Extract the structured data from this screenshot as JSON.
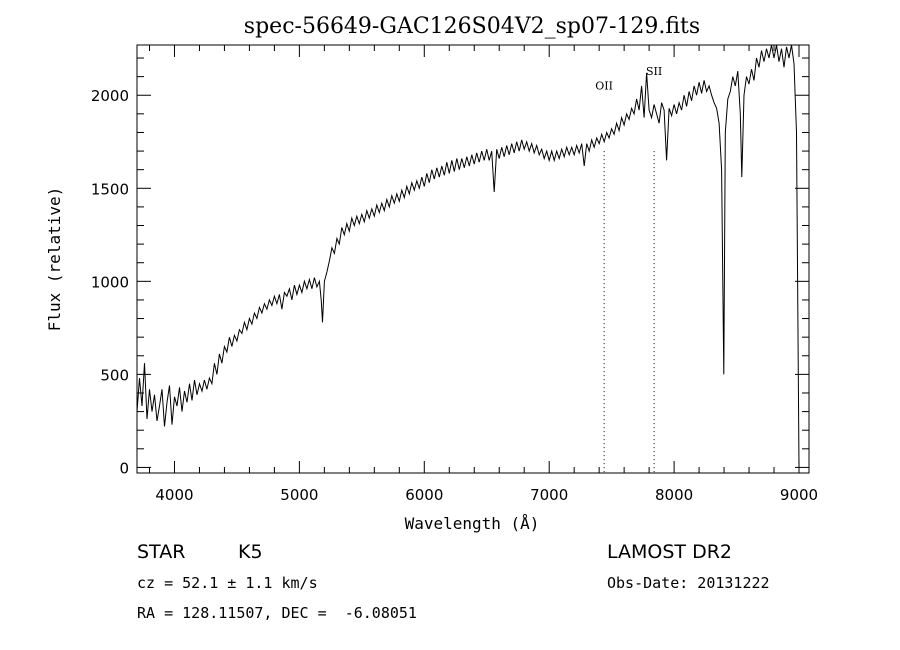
{
  "chart_data": {
    "type": "line",
    "title": "spec-56649-GAC126S04V2_sp07-129.fits",
    "xlabel": "Wavelength (Å)",
    "ylabel": "Flux (relative)",
    "xlim": [
      3700,
      9080
    ],
    "ylim": [
      -30,
      2270
    ],
    "x_ticks": [
      4000,
      5000,
      6000,
      7000,
      8000,
      9000
    ],
    "y_ticks": [
      0,
      500,
      1000,
      1500,
      2000
    ],
    "grid": false,
    "line_color": "#000000",
    "series": [
      {
        "values": [
          [
            3700,
            300
          ],
          [
            3720,
            480
          ],
          [
            3740,
            330
          ],
          [
            3760,
            560
          ],
          [
            3780,
            260
          ],
          [
            3800,
            420
          ],
          [
            3820,
            300
          ],
          [
            3840,
            390
          ],
          [
            3860,
            250
          ],
          [
            3880,
            330
          ],
          [
            3900,
            420
          ],
          [
            3920,
            220
          ],
          [
            3940,
            350
          ],
          [
            3960,
            440
          ],
          [
            3980,
            230
          ],
          [
            4000,
            380
          ],
          [
            4020,
            330
          ],
          [
            4040,
            430
          ],
          [
            4060,
            300
          ],
          [
            4080,
            410
          ],
          [
            4100,
            350
          ],
          [
            4120,
            450
          ],
          [
            4140,
            360
          ],
          [
            4160,
            470
          ],
          [
            4180,
            390
          ],
          [
            4200,
            450
          ],
          [
            4220,
            410
          ],
          [
            4240,
            470
          ],
          [
            4260,
            420
          ],
          [
            4280,
            480
          ],
          [
            4300,
            450
          ],
          [
            4320,
            560
          ],
          [
            4340,
            500
          ],
          [
            4360,
            610
          ],
          [
            4380,
            560
          ],
          [
            4400,
            650
          ],
          [
            4420,
            620
          ],
          [
            4440,
            700
          ],
          [
            4460,
            650
          ],
          [
            4480,
            710
          ],
          [
            4500,
            680
          ],
          [
            4520,
            740
          ],
          [
            4540,
            720
          ],
          [
            4560,
            780
          ],
          [
            4580,
            740
          ],
          [
            4600,
            800
          ],
          [
            4620,
            770
          ],
          [
            4640,
            830
          ],
          [
            4660,
            800
          ],
          [
            4680,
            860
          ],
          [
            4700,
            830
          ],
          [
            4720,
            880
          ],
          [
            4740,
            850
          ],
          [
            4760,
            900
          ],
          [
            4780,
            870
          ],
          [
            4800,
            920
          ],
          [
            4820,
            880
          ],
          [
            4840,
            930
          ],
          [
            4860,
            850
          ],
          [
            4880,
            940
          ],
          [
            4900,
            920
          ],
          [
            4920,
            960
          ],
          [
            4940,
            900
          ],
          [
            4960,
            980
          ],
          [
            4980,
            930
          ],
          [
            5000,
            980
          ],
          [
            5020,
            940
          ],
          [
            5040,
            1000
          ],
          [
            5060,
            960
          ],
          [
            5080,
            1010
          ],
          [
            5100,
            960
          ],
          [
            5120,
            1020
          ],
          [
            5140,
            970
          ],
          [
            5160,
            1000
          ],
          [
            5175,
            900
          ],
          [
            5185,
            780
          ],
          [
            5200,
            1000
          ],
          [
            5220,
            1050
          ],
          [
            5240,
            1110
          ],
          [
            5260,
            1180
          ],
          [
            5280,
            1150
          ],
          [
            5300,
            1230
          ],
          [
            5320,
            1200
          ],
          [
            5340,
            1290
          ],
          [
            5360,
            1250
          ],
          [
            5380,
            1310
          ],
          [
            5400,
            1270
          ],
          [
            5420,
            1340
          ],
          [
            5440,
            1300
          ],
          [
            5460,
            1350
          ],
          [
            5480,
            1310
          ],
          [
            5500,
            1360
          ],
          [
            5520,
            1320
          ],
          [
            5540,
            1380
          ],
          [
            5560,
            1340
          ],
          [
            5580,
            1390
          ],
          [
            5600,
            1350
          ],
          [
            5620,
            1410
          ],
          [
            5640,
            1370
          ],
          [
            5660,
            1420
          ],
          [
            5680,
            1380
          ],
          [
            5700,
            1440
          ],
          [
            5720,
            1400
          ],
          [
            5740,
            1460
          ],
          [
            5760,
            1420
          ],
          [
            5780,
            1470
          ],
          [
            5800,
            1430
          ],
          [
            5820,
            1490
          ],
          [
            5840,
            1450
          ],
          [
            5860,
            1510
          ],
          [
            5880,
            1470
          ],
          [
            5900,
            1530
          ],
          [
            5920,
            1490
          ],
          [
            5940,
            1540
          ],
          [
            5960,
            1500
          ],
          [
            5980,
            1560
          ],
          [
            6000,
            1510
          ],
          [
            6020,
            1580
          ],
          [
            6040,
            1530
          ],
          [
            6060,
            1600
          ],
          [
            6080,
            1550
          ],
          [
            6100,
            1610
          ],
          [
            6120,
            1560
          ],
          [
            6140,
            1620
          ],
          [
            6160,
            1570
          ],
          [
            6180,
            1640
          ],
          [
            6200,
            1580
          ],
          [
            6220,
            1650
          ],
          [
            6240,
            1590
          ],
          [
            6260,
            1660
          ],
          [
            6280,
            1600
          ],
          [
            6300,
            1660
          ],
          [
            6320,
            1610
          ],
          [
            6340,
            1670
          ],
          [
            6360,
            1620
          ],
          [
            6380,
            1680
          ],
          [
            6400,
            1630
          ],
          [
            6420,
            1690
          ],
          [
            6440,
            1640
          ],
          [
            6460,
            1700
          ],
          [
            6480,
            1650
          ],
          [
            6500,
            1710
          ],
          [
            6520,
            1650
          ],
          [
            6540,
            1700
          ],
          [
            6560,
            1480
          ],
          [
            6580,
            1710
          ],
          [
            6600,
            1660
          ],
          [
            6620,
            1720
          ],
          [
            6640,
            1670
          ],
          [
            6660,
            1730
          ],
          [
            6680,
            1680
          ],
          [
            6700,
            1740
          ],
          [
            6720,
            1690
          ],
          [
            6740,
            1750
          ],
          [
            6760,
            1700
          ],
          [
            6780,
            1760
          ],
          [
            6800,
            1710
          ],
          [
            6820,
            1750
          ],
          [
            6840,
            1700
          ],
          [
            6860,
            1740
          ],
          [
            6880,
            1690
          ],
          [
            6900,
            1730
          ],
          [
            6920,
            1680
          ],
          [
            6940,
            1710
          ],
          [
            6960,
            1660
          ],
          [
            6980,
            1700
          ],
          [
            7000,
            1650
          ],
          [
            7020,
            1700
          ],
          [
            7040,
            1650
          ],
          [
            7060,
            1700
          ],
          [
            7080,
            1660
          ],
          [
            7100,
            1710
          ],
          [
            7120,
            1670
          ],
          [
            7140,
            1720
          ],
          [
            7160,
            1680
          ],
          [
            7180,
            1720
          ],
          [
            7200,
            1680
          ],
          [
            7220,
            1730
          ],
          [
            7240,
            1690
          ],
          [
            7260,
            1740
          ],
          [
            7280,
            1620
          ],
          [
            7300,
            1740
          ],
          [
            7320,
            1700
          ],
          [
            7340,
            1760
          ],
          [
            7360,
            1720
          ],
          [
            7380,
            1770
          ],
          [
            7400,
            1740
          ],
          [
            7420,
            1790
          ],
          [
            7440,
            1750
          ],
          [
            7460,
            1800
          ],
          [
            7480,
            1770
          ],
          [
            7500,
            1820
          ],
          [
            7520,
            1790
          ],
          [
            7540,
            1850
          ],
          [
            7560,
            1810
          ],
          [
            7580,
            1880
          ],
          [
            7600,
            1840
          ],
          [
            7620,
            1900
          ],
          [
            7640,
            1870
          ],
          [
            7660,
            1930
          ],
          [
            7680,
            1900
          ],
          [
            7700,
            1980
          ],
          [
            7720,
            1920
          ],
          [
            7740,
            2050
          ],
          [
            7760,
            1880
          ],
          [
            7780,
            2120
          ],
          [
            7800,
            1920
          ],
          [
            7820,
            1880
          ],
          [
            7840,
            1950
          ],
          [
            7860,
            1900
          ],
          [
            7880,
            1850
          ],
          [
            7900,
            1960
          ],
          [
            7920,
            1920
          ],
          [
            7940,
            1650
          ],
          [
            7960,
            1930
          ],
          [
            7980,
            1890
          ],
          [
            8000,
            1950
          ],
          [
            8020,
            1900
          ],
          [
            8040,
            1960
          ],
          [
            8060,
            1920
          ],
          [
            8080,
            2000
          ],
          [
            8100,
            1940
          ],
          [
            8120,
            2020
          ],
          [
            8140,
            1970
          ],
          [
            8160,
            2050
          ],
          [
            8180,
            2000
          ],
          [
            8200,
            2070
          ],
          [
            8220,
            2010
          ],
          [
            8240,
            2080
          ],
          [
            8260,
            2020
          ],
          [
            8280,
            2050
          ],
          [
            8300,
            2000
          ],
          [
            8320,
            1960
          ],
          [
            8340,
            1930
          ],
          [
            8360,
            1850
          ],
          [
            8380,
            1600
          ],
          [
            8398,
            500
          ],
          [
            8410,
            1800
          ],
          [
            8430,
            1980
          ],
          [
            8450,
            2020
          ],
          [
            8470,
            2100
          ],
          [
            8490,
            2050
          ],
          [
            8510,
            2130
          ],
          [
            8530,
            1900
          ],
          [
            8542,
            1560
          ],
          [
            8560,
            2000
          ],
          [
            8580,
            2100
          ],
          [
            8600,
            2060
          ],
          [
            8620,
            2140
          ],
          [
            8640,
            2080
          ],
          [
            8660,
            2200
          ],
          [
            8680,
            2150
          ],
          [
            8700,
            2240
          ],
          [
            8720,
            2180
          ],
          [
            8740,
            2250
          ],
          [
            8760,
            2200
          ],
          [
            8780,
            2270
          ],
          [
            8800,
            2200
          ],
          [
            8820,
            2270
          ],
          [
            8840,
            2180
          ],
          [
            8860,
            2250
          ],
          [
            8880,
            2150
          ],
          [
            8900,
            2260
          ],
          [
            8920,
            2200
          ],
          [
            8940,
            2270
          ],
          [
            8960,
            2170
          ],
          [
            8980,
            1800
          ],
          [
            9000,
            0
          ]
        ]
      }
    ],
    "annotations": [
      {
        "label": "OII",
        "x": 7440,
        "y": 2030
      },
      {
        "label": "SII",
        "x": 7840,
        "y": 2110
      }
    ],
    "marked_lines": [
      7440,
      7840
    ]
  },
  "footer": {
    "object_class": "STAR",
    "subclass": "K5",
    "survey": "LAMOST DR2",
    "redshift": "cz = 52.1 ± 1.1 km/s",
    "obs_date": "Obs-Date: 20131222",
    "coords": "RA = 128.11507, DEC =  -6.08051"
  }
}
